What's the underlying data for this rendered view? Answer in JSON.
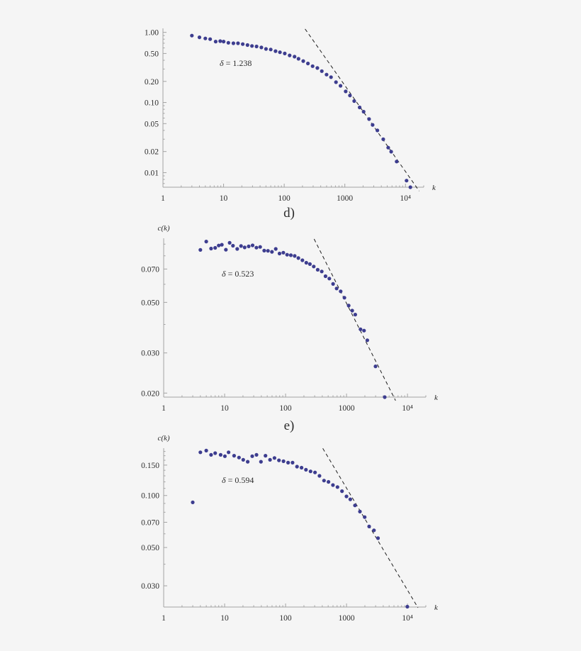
{
  "figure": {
    "background": "#f5f5f5",
    "marker_color": "#3d3d8f",
    "fit_line_color": "#1e1e1e",
    "axis_color": "#a3a3a3",
    "captions": [
      {
        "text": "d)",
        "below_chart": 1
      },
      {
        "text": "e)",
        "below_chart": 2
      }
    ]
  },
  "chart_data": [
    {
      "type": "scatter",
      "title": "",
      "xlabel": "k",
      "ylabel": "",
      "xscale": "log",
      "yscale": "log",
      "xlim": [
        1,
        20000
      ],
      "ylim": [
        0.0062,
        1.14
      ],
      "grid": false,
      "legend": null,
      "xticks": [
        1,
        10,
        100,
        1000,
        10000
      ],
      "xtick_labels": [
        "1",
        "10",
        "100",
        "1000",
        "10⁴"
      ],
      "yticks": [
        1.0,
        0.5,
        0.2,
        0.1,
        0.05,
        0.02,
        0.01
      ],
      "ytick_labels": [
        "1.00",
        "0.50",
        "0.20",
        "0.10",
        "0.05",
        "0.02",
        "0.01"
      ],
      "annotation": {
        "symbol": "δ",
        "text": " = 1.238"
      },
      "fit_line": {
        "style": "dashed",
        "slope": -1.238,
        "points": [
          [
            221,
            1.117
          ],
          [
            16830,
            0.00548
          ]
        ]
      },
      "points": [
        [
          3,
          0.9
        ],
        [
          4,
          0.85
        ],
        [
          5,
          0.82
        ],
        [
          6,
          0.8
        ],
        [
          7.4,
          0.74
        ],
        [
          8.8,
          0.75
        ],
        [
          10,
          0.74
        ],
        [
          12,
          0.71
        ],
        [
          14.5,
          0.7
        ],
        [
          17.3,
          0.7
        ],
        [
          20.7,
          0.68
        ],
        [
          24.8,
          0.66
        ],
        [
          29.4,
          0.64
        ],
        [
          35,
          0.63
        ],
        [
          42,
          0.61
        ],
        [
          50,
          0.58
        ],
        [
          60,
          0.57
        ],
        [
          72,
          0.54
        ],
        [
          85,
          0.52
        ],
        [
          102,
          0.5
        ],
        [
          123,
          0.47
        ],
        [
          148,
          0.45
        ],
        [
          172,
          0.42
        ],
        [
          206,
          0.39
        ],
        [
          246,
          0.36
        ],
        [
          294,
          0.33
        ],
        [
          352,
          0.31
        ],
        [
          417,
          0.28
        ],
        [
          500,
          0.25
        ],
        [
          592,
          0.23
        ],
        [
          715,
          0.195
        ],
        [
          849,
          0.173
        ],
        [
          1033,
          0.144
        ],
        [
          1214,
          0.126
        ],
        [
          1426,
          0.105
        ],
        [
          1754,
          0.085
        ],
        [
          2041,
          0.074
        ],
        [
          2510,
          0.058
        ],
        [
          2872,
          0.048
        ],
        [
          3437,
          0.04
        ],
        [
          4297,
          0.03
        ],
        [
          5188,
          0.0227
        ],
        [
          5823,
          0.0199
        ],
        [
          7161,
          0.0144
        ],
        [
          10440,
          0.0077
        ],
        [
          12050,
          0.0062
        ]
      ]
    },
    {
      "type": "scatter",
      "title": "",
      "xlabel": "k",
      "ylabel": "c(k)",
      "xscale": "log",
      "yscale": "log",
      "xlim": [
        1,
        20000
      ],
      "ylim": [
        0.0192,
        0.0955
      ],
      "grid": false,
      "legend": null,
      "xticks": [
        1,
        10,
        100,
        1000,
        10000
      ],
      "xtick_labels": [
        "1",
        "10",
        "100",
        "1000",
        "10⁴"
      ],
      "yticks": [
        0.07,
        0.05,
        0.03,
        0.02
      ],
      "ytick_labels": [
        "0.070",
        "0.050",
        "0.030",
        "0.020"
      ],
      "annotation": {
        "symbol": "δ",
        "text": " = 0.523"
      },
      "fit_line": {
        "style": "dashed",
        "slope": -0.523,
        "points": [
          [
            294,
            0.0948
          ],
          [
            6383,
            0.01853
          ]
        ]
      },
      "points": [
        [
          4,
          0.0849
        ],
        [
          5,
          0.0924
        ],
        [
          6,
          0.0861
        ],
        [
          7,
          0.0867
        ],
        [
          8,
          0.0888
        ],
        [
          9,
          0.0895
        ],
        [
          10.5,
          0.0851
        ],
        [
          12.1,
          0.0912
        ],
        [
          13.7,
          0.0886
        ],
        [
          16.1,
          0.0858
        ],
        [
          18.6,
          0.0883
        ],
        [
          21.3,
          0.0871
        ],
        [
          24.8,
          0.088
        ],
        [
          28.8,
          0.0889
        ],
        [
          33.2,
          0.0869
        ],
        [
          38.3,
          0.0875
        ],
        [
          44.6,
          0.0843
        ],
        [
          51.4,
          0.0841
        ],
        [
          59.8,
          0.0833
        ],
        [
          69,
          0.0858
        ],
        [
          79.5,
          0.0819
        ],
        [
          91.8,
          0.0826
        ],
        [
          106,
          0.0809
        ],
        [
          122,
          0.0805
        ],
        [
          141,
          0.0799
        ],
        [
          162,
          0.0782
        ],
        [
          189,
          0.0765
        ],
        [
          219,
          0.0746
        ],
        [
          251,
          0.0736
        ],
        [
          290,
          0.0718
        ],
        [
          337,
          0.0695
        ],
        [
          392,
          0.0683
        ],
        [
          452,
          0.0651
        ],
        [
          522,
          0.0636
        ],
        [
          602,
          0.0602
        ],
        [
          688,
          0.0575
        ],
        [
          801,
          0.0559
        ],
        [
          923,
          0.0524
        ],
        [
          1083,
          0.0484
        ],
        [
          1238,
          0.046
        ],
        [
          1390,
          0.0442
        ],
        [
          1694,
          0.0381
        ],
        [
          1936,
          0.0376
        ],
        [
          2190,
          0.0341
        ],
        [
          2993,
          0.0262
        ],
        [
          4240,
          0.0192
        ]
      ]
    },
    {
      "type": "scatter",
      "title": "",
      "xlabel": "k",
      "ylabel": "c(k)",
      "xscale": "log",
      "yscale": "log",
      "xlim": [
        1,
        20000
      ],
      "ylim": [
        0.0226,
        0.188
      ],
      "grid": false,
      "legend": null,
      "xticks": [
        1,
        10,
        100,
        1000,
        10000
      ],
      "xtick_labels": [
        "1",
        "10",
        "100",
        "1000",
        "10⁴"
      ],
      "yticks": [
        0.15,
        0.1,
        0.07,
        0.05,
        0.03
      ],
      "ytick_labels": [
        "0.150",
        "0.100",
        "0.070",
        "0.050",
        "0.030"
      ],
      "annotation": {
        "symbol": "δ",
        "text": " = 0.594"
      },
      "fit_line": {
        "style": "dashed",
        "slope": -0.594,
        "points": [
          [
            408,
            0.1875
          ],
          [
            14860,
            0.0224
          ]
        ]
      },
      "points": [
        [
          3,
          0.0913
        ],
        [
          4,
          0.178
        ],
        [
          5,
          0.182
        ],
        [
          6,
          0.172
        ],
        [
          7,
          0.176
        ],
        [
          8.6,
          0.172
        ],
        [
          10.1,
          0.169
        ],
        [
          11.6,
          0.178
        ],
        [
          14.3,
          0.17
        ],
        [
          17.2,
          0.166
        ],
        [
          20.2,
          0.161
        ],
        [
          23.9,
          0.157
        ],
        [
          28.4,
          0.169
        ],
        [
          33.3,
          0.172
        ],
        [
          39.5,
          0.157
        ],
        [
          46.8,
          0.17
        ],
        [
          55.6,
          0.161
        ],
        [
          65.8,
          0.165
        ],
        [
          77.9,
          0.16
        ],
        [
          92.5,
          0.158
        ],
        [
          110,
          0.155
        ],
        [
          130,
          0.155
        ],
        [
          154,
          0.147
        ],
        [
          183,
          0.145
        ],
        [
          216,
          0.141
        ],
        [
          257,
          0.138
        ],
        [
          304,
          0.136
        ],
        [
          360,
          0.13
        ],
        [
          427,
          0.122
        ],
        [
          506,
          0.12
        ],
        [
          599,
          0.115
        ],
        [
          711,
          0.112
        ],
        [
          842,
          0.106
        ],
        [
          997,
          0.0988
        ],
        [
          1153,
          0.0951
        ],
        [
          1376,
          0.0876
        ],
        [
          1661,
          0.0807
        ],
        [
          1987,
          0.075
        ],
        [
          2353,
          0.0662
        ],
        [
          2818,
          0.0629
        ],
        [
          3284,
          0.0566
        ],
        [
          9950,
          0.0227
        ]
      ]
    }
  ]
}
